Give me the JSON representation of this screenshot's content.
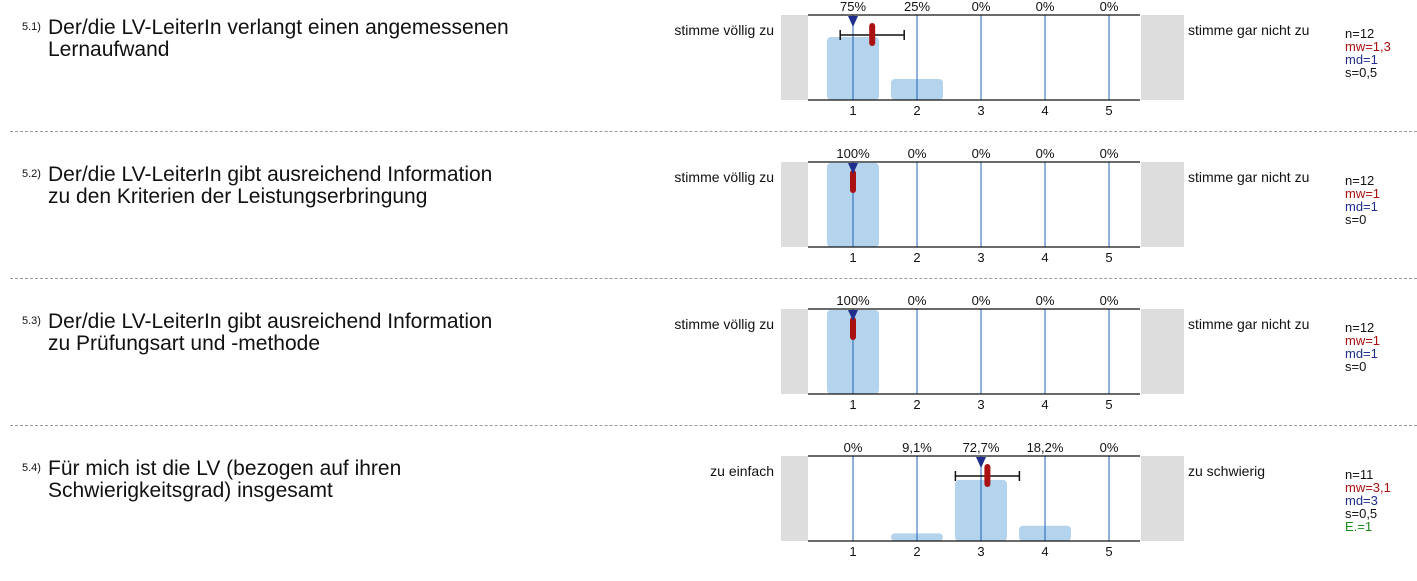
{
  "items": [
    {
      "number": "5.1)",
      "question": [
        "Der/die LV-LeiterIn verlangt einen angemessenen",
        "Lernaufwand"
      ],
      "left_label": "stimme völlig zu",
      "right_label": "stimme gar nicht zu",
      "stats": {
        "n": "n=12",
        "mw": "mw=1,3",
        "md": "md=1",
        "s": "s=0,5"
      },
      "chart_data": {
        "type": "bar",
        "categories": [
          "1",
          "2",
          "3",
          "4",
          "5"
        ],
        "percent_labels": [
          "75%",
          "25%",
          "0%",
          "0%",
          "0%"
        ],
        "values": [
          75,
          25,
          0,
          0,
          0
        ],
        "mean": 1.3,
        "median": 1,
        "std": 0.5
      }
    },
    {
      "number": "5.2)",
      "question": [
        "Der/die LV-LeiterIn gibt ausreichend Information",
        "zu den Kriterien der Leistungserbringung"
      ],
      "left_label": "stimme völlig zu",
      "right_label": "stimme gar nicht zu",
      "stats": {
        "n": "n=12",
        "mw": "mw=1",
        "md": "md=1",
        "s": "s=0"
      },
      "chart_data": {
        "type": "bar",
        "categories": [
          "1",
          "2",
          "3",
          "4",
          "5"
        ],
        "percent_labels": [
          "100%",
          "0%",
          "0%",
          "0%",
          "0%"
        ],
        "values": [
          100,
          0,
          0,
          0,
          0
        ],
        "mean": 1,
        "median": 1,
        "std": 0
      }
    },
    {
      "number": "5.3)",
      "question": [
        "Der/die LV-LeiterIn gibt ausreichend Information",
        "zu Prüfungsart und -methode"
      ],
      "left_label": "stimme völlig zu",
      "right_label": "stimme gar nicht zu",
      "stats": {
        "n": "n=12",
        "mw": "mw=1",
        "md": "md=1",
        "s": "s=0"
      },
      "chart_data": {
        "type": "bar",
        "categories": [
          "1",
          "2",
          "3",
          "4",
          "5"
        ],
        "percent_labels": [
          "100%",
          "0%",
          "0%",
          "0%",
          "0%"
        ],
        "values": [
          100,
          0,
          0,
          0,
          0
        ],
        "mean": 1,
        "median": 1,
        "std": 0
      }
    },
    {
      "number": "5.4)",
      "question": [
        "Für mich ist die LV (bezogen auf ihren",
        "Schwierigkeitsgrad) insgesamt"
      ],
      "left_label": "zu einfach",
      "right_label": "zu schwierig",
      "stats": {
        "n": "n=11",
        "mw": "mw=3,1",
        "md": "md=3",
        "s": "s=0,5",
        "e": "E.=1"
      },
      "chart_data": {
        "type": "bar",
        "categories": [
          "1",
          "2",
          "3",
          "4",
          "5"
        ],
        "percent_labels": [
          "0%",
          "9,1%",
          "72,7%",
          "18,2%",
          "0%"
        ],
        "values": [
          0,
          9.1,
          72.7,
          18.2,
          0
        ],
        "mean": 3.1,
        "median": 3,
        "std": 0.5
      }
    }
  ],
  "colors": {
    "bar": "#b4d3ec",
    "gridline": "#1f63b5",
    "gray_panel": "#dddddd",
    "mean_marker": "#aa1111",
    "median_marker": "#1f2e8c"
  }
}
